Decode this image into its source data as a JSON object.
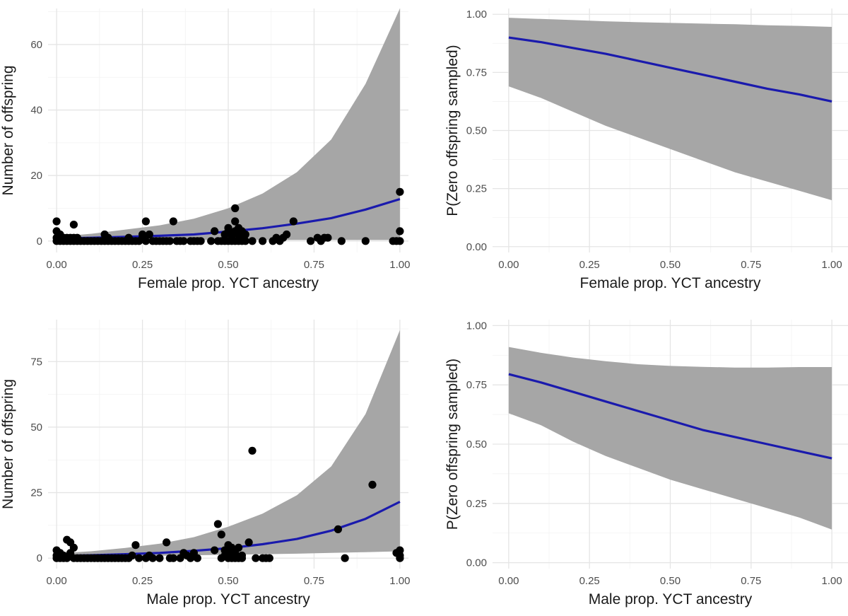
{
  "colors": {
    "line": "#1a1aad",
    "ribbon": "#a6a6a6",
    "points": "#000000"
  },
  "chart_data": [
    {
      "id": "female-offspring",
      "type": "scatter",
      "xlabel": "Female prop. YCT ancestry",
      "ylabel": "Number of offspring",
      "xlim": [
        -0.025,
        1.025
      ],
      "ylim": [
        -3.5,
        71
      ],
      "xticks": [
        0,
        0.25,
        0.5,
        0.75,
        1
      ],
      "xtick_labels": [
        "0.00",
        "0.25",
        "0.50",
        "0.75",
        "1.00"
      ],
      "yticks": [
        0,
        20,
        40,
        60
      ],
      "ytick_labels": [
        "0",
        "20",
        "40",
        "60"
      ],
      "fit_line": {
        "x": [
          0,
          0.1,
          0.2,
          0.3,
          0.4,
          0.5,
          0.6,
          0.7,
          0.8,
          0.9,
          1.0
        ],
        "y": [
          0.8,
          1.0,
          1.3,
          1.6,
          2.0,
          2.9,
          3.9,
          5.3,
          7.0,
          9.6,
          12.8
        ]
      },
      "ribbon": {
        "x": [
          0,
          0.1,
          0.2,
          0.3,
          0.4,
          0.5,
          0.6,
          0.7,
          0.8,
          0.9,
          1.0
        ],
        "lower": [
          0.3,
          0.3,
          0.3,
          0.3,
          0.3,
          0.3,
          0.3,
          0.3,
          0.3,
          0.3,
          0.3
        ],
        "upper": [
          1.3,
          2.2,
          3.5,
          4.8,
          6.8,
          10.0,
          14.5,
          21.0,
          31.0,
          48.0,
          71.0
        ]
      },
      "points": [
        [
          0.0,
          6
        ],
        [
          0.0,
          3
        ],
        [
          0.0,
          1
        ],
        [
          0.0,
          0
        ],
        [
          0.01,
          0
        ],
        [
          0.01,
          1
        ],
        [
          0.01,
          2
        ],
        [
          0.02,
          0
        ],
        [
          0.02,
          1
        ],
        [
          0.03,
          0
        ],
        [
          0.03,
          1
        ],
        [
          0.04,
          0
        ],
        [
          0.04,
          1
        ],
        [
          0.05,
          5
        ],
        [
          0.05,
          0
        ],
        [
          0.05,
          1
        ],
        [
          0.06,
          0
        ],
        [
          0.06,
          1
        ],
        [
          0.07,
          0
        ],
        [
          0.08,
          0
        ],
        [
          0.09,
          0
        ],
        [
          0.1,
          0
        ],
        [
          0.11,
          0
        ],
        [
          0.12,
          0
        ],
        [
          0.13,
          0
        ],
        [
          0.14,
          0
        ],
        [
          0.14,
          2
        ],
        [
          0.15,
          0
        ],
        [
          0.15,
          1
        ],
        [
          0.16,
          0
        ],
        [
          0.17,
          0
        ],
        [
          0.18,
          0
        ],
        [
          0.19,
          0
        ],
        [
          0.2,
          0
        ],
        [
          0.21,
          0
        ],
        [
          0.21,
          1
        ],
        [
          0.22,
          0
        ],
        [
          0.23,
          0
        ],
        [
          0.24,
          0
        ],
        [
          0.25,
          1
        ],
        [
          0.25,
          2
        ],
        [
          0.26,
          0
        ],
        [
          0.26,
          6
        ],
        [
          0.27,
          2
        ],
        [
          0.28,
          0
        ],
        [
          0.29,
          0
        ],
        [
          0.3,
          0
        ],
        [
          0.31,
          0
        ],
        [
          0.32,
          0
        ],
        [
          0.33,
          0
        ],
        [
          0.34,
          6
        ],
        [
          0.35,
          0
        ],
        [
          0.36,
          0
        ],
        [
          0.37,
          0
        ],
        [
          0.39,
          0
        ],
        [
          0.4,
          0
        ],
        [
          0.41,
          0
        ],
        [
          0.42,
          0
        ],
        [
          0.45,
          0
        ],
        [
          0.46,
          3
        ],
        [
          0.47,
          0
        ],
        [
          0.48,
          0
        ],
        [
          0.49,
          0
        ],
        [
          0.49,
          2
        ],
        [
          0.5,
          0
        ],
        [
          0.5,
          3
        ],
        [
          0.5,
          4
        ],
        [
          0.51,
          0
        ],
        [
          0.51,
          1
        ],
        [
          0.51,
          2
        ],
        [
          0.52,
          0
        ],
        [
          0.52,
          10
        ],
        [
          0.52,
          6
        ],
        [
          0.52,
          3
        ],
        [
          0.53,
          0
        ],
        [
          0.53,
          4
        ],
        [
          0.53,
          2
        ],
        [
          0.54,
          0
        ],
        [
          0.54,
          1
        ],
        [
          0.54,
          3
        ],
        [
          0.55,
          0
        ],
        [
          0.55,
          2
        ],
        [
          0.57,
          0
        ],
        [
          0.6,
          0
        ],
        [
          0.63,
          0
        ],
        [
          0.64,
          1
        ],
        [
          0.65,
          0
        ],
        [
          0.66,
          1
        ],
        [
          0.67,
          2
        ],
        [
          0.69,
          6
        ],
        [
          0.74,
          0
        ],
        [
          0.76,
          1
        ],
        [
          0.77,
          0
        ],
        [
          0.78,
          1
        ],
        [
          0.79,
          1
        ],
        [
          0.83,
          0
        ],
        [
          0.9,
          0
        ],
        [
          0.98,
          0
        ],
        [
          0.99,
          0
        ],
        [
          1.0,
          15
        ],
        [
          1.0,
          3
        ],
        [
          1.0,
          0
        ]
      ]
    },
    {
      "id": "female-zero",
      "type": "line",
      "xlabel": "Female prop. YCT ancestry",
      "ylabel": "P(Zero offspring sampled)",
      "xlim": [
        -0.05,
        1.05
      ],
      "ylim": [
        -0.025,
        1.025
      ],
      "xticks": [
        0,
        0.25,
        0.5,
        0.75,
        1
      ],
      "xtick_labels": [
        "0.00",
        "0.25",
        "0.50",
        "0.75",
        "1.00"
      ],
      "yticks": [
        0,
        0.25,
        0.5,
        0.75,
        1
      ],
      "ytick_labels": [
        "0.00",
        "0.25",
        "0.50",
        "0.75",
        "1.00"
      ],
      "fit_line": {
        "x": [
          0,
          0.1,
          0.2,
          0.3,
          0.4,
          0.5,
          0.6,
          0.7,
          0.8,
          0.9,
          1.0
        ],
        "y": [
          0.9,
          0.88,
          0.855,
          0.83,
          0.8,
          0.77,
          0.74,
          0.71,
          0.68,
          0.655,
          0.625
        ]
      },
      "ribbon": {
        "x": [
          0,
          0.1,
          0.2,
          0.3,
          0.4,
          0.5,
          0.6,
          0.7,
          0.8,
          0.9,
          1.0
        ],
        "lower": [
          0.69,
          0.64,
          0.58,
          0.52,
          0.47,
          0.42,
          0.37,
          0.32,
          0.28,
          0.24,
          0.2
        ],
        "upper": [
          0.985,
          0.98,
          0.975,
          0.97,
          0.966,
          0.963,
          0.96,
          0.957,
          0.953,
          0.95,
          0.946
        ]
      }
    },
    {
      "id": "male-offspring",
      "type": "scatter",
      "xlabel": "Male prop. YCT ancestry",
      "ylabel": "Number of offspring",
      "xlim": [
        -0.025,
        1.025
      ],
      "ylim": [
        -4,
        91
      ],
      "xticks": [
        0,
        0.25,
        0.5,
        0.75,
        1
      ],
      "xtick_labels": [
        "0.00",
        "0.25",
        "0.50",
        "0.75",
        "1.00"
      ],
      "yticks": [
        0,
        25,
        50,
        75
      ],
      "ytick_labels": [
        "0",
        "25",
        "50",
        "75"
      ],
      "fit_line": {
        "x": [
          0,
          0.1,
          0.2,
          0.3,
          0.4,
          0.5,
          0.6,
          0.7,
          0.8,
          0.9,
          1.0
        ],
        "y": [
          0.8,
          1.1,
          1.5,
          2.0,
          2.8,
          3.8,
          5.3,
          7.3,
          10.5,
          15.0,
          21.5
        ]
      },
      "ribbon": {
        "x": [
          0,
          0.1,
          0.2,
          0.3,
          0.4,
          0.5,
          0.6,
          0.7,
          0.8,
          0.9,
          1.0
        ],
        "lower": [
          0.3,
          0.5,
          0.7,
          0.9,
          1.1,
          1.3,
          1.5,
          1.7,
          2.0,
          2.3,
          2.6
        ],
        "upper": [
          1.8,
          2.6,
          3.9,
          5.5,
          8.0,
          12.0,
          17.0,
          24.0,
          35.0,
          55.0,
          87.0
        ]
      },
      "points": [
        [
          0.0,
          3
        ],
        [
          0.0,
          1
        ],
        [
          0.0,
          0
        ],
        [
          0.01,
          0
        ],
        [
          0.01,
          2
        ],
        [
          0.02,
          1
        ],
        [
          0.02,
          0
        ],
        [
          0.03,
          7
        ],
        [
          0.03,
          0
        ],
        [
          0.04,
          6
        ],
        [
          0.04,
          2
        ],
        [
          0.05,
          0
        ],
        [
          0.05,
          4
        ],
        [
          0.06,
          0
        ],
        [
          0.07,
          0
        ],
        [
          0.08,
          0
        ],
        [
          0.09,
          0
        ],
        [
          0.1,
          0
        ],
        [
          0.11,
          0
        ],
        [
          0.12,
          0
        ],
        [
          0.13,
          0
        ],
        [
          0.14,
          0
        ],
        [
          0.15,
          0
        ],
        [
          0.16,
          0
        ],
        [
          0.17,
          0
        ],
        [
          0.18,
          0
        ],
        [
          0.19,
          0
        ],
        [
          0.2,
          0
        ],
        [
          0.21,
          0
        ],
        [
          0.22,
          1
        ],
        [
          0.23,
          5
        ],
        [
          0.24,
          0
        ],
        [
          0.26,
          0
        ],
        [
          0.27,
          1
        ],
        [
          0.28,
          0
        ],
        [
          0.3,
          0
        ],
        [
          0.32,
          6
        ],
        [
          0.33,
          0
        ],
        [
          0.34,
          0
        ],
        [
          0.36,
          0
        ],
        [
          0.37,
          2
        ],
        [
          0.38,
          1
        ],
        [
          0.39,
          0
        ],
        [
          0.4,
          2
        ],
        [
          0.41,
          0
        ],
        [
          0.46,
          3
        ],
        [
          0.47,
          13
        ],
        [
          0.48,
          9
        ],
        [
          0.48,
          0
        ],
        [
          0.49,
          1
        ],
        [
          0.49,
          3
        ],
        [
          0.5,
          0
        ],
        [
          0.5,
          5
        ],
        [
          0.5,
          2
        ],
        [
          0.51,
          4
        ],
        [
          0.51,
          0
        ],
        [
          0.52,
          2
        ],
        [
          0.52,
          0
        ],
        [
          0.53,
          4
        ],
        [
          0.53,
          0
        ],
        [
          0.54,
          1
        ],
        [
          0.54,
          0
        ],
        [
          0.56,
          6
        ],
        [
          0.57,
          41
        ],
        [
          0.58,
          0
        ],
        [
          0.6,
          0
        ],
        [
          0.61,
          0
        ],
        [
          0.62,
          0
        ],
        [
          0.82,
          11
        ],
        [
          0.84,
          0
        ],
        [
          0.92,
          28
        ],
        [
          0.99,
          2
        ],
        [
          1.0,
          3
        ],
        [
          1.0,
          1
        ],
        [
          1.0,
          0
        ]
      ]
    },
    {
      "id": "male-zero",
      "type": "line",
      "xlabel": "Male prop. YCT ancestry",
      "ylabel": "P(Zero offspring sampled)",
      "xlim": [
        -0.05,
        1.05
      ],
      "ylim": [
        -0.025,
        1.025
      ],
      "xticks": [
        0,
        0.25,
        0.5,
        0.75,
        1
      ],
      "xtick_labels": [
        "0.00",
        "0.25",
        "0.50",
        "0.75",
        "1.00"
      ],
      "yticks": [
        0,
        0.25,
        0.5,
        0.75,
        1
      ],
      "ytick_labels": [
        "0.00",
        "0.25",
        "0.50",
        "0.75",
        "1.00"
      ],
      "fit_line": {
        "x": [
          0,
          0.1,
          0.2,
          0.3,
          0.4,
          0.5,
          0.6,
          0.7,
          0.8,
          0.9,
          1.0
        ],
        "y": [
          0.795,
          0.76,
          0.72,
          0.68,
          0.64,
          0.6,
          0.56,
          0.53,
          0.5,
          0.47,
          0.44
        ]
      },
      "ribbon": {
        "x": [
          0,
          0.1,
          0.2,
          0.3,
          0.4,
          0.5,
          0.6,
          0.7,
          0.8,
          0.9,
          1.0
        ],
        "lower": [
          0.63,
          0.58,
          0.51,
          0.45,
          0.4,
          0.35,
          0.31,
          0.27,
          0.23,
          0.19,
          0.14
        ],
        "upper": [
          0.91,
          0.885,
          0.865,
          0.85,
          0.837,
          0.83,
          0.826,
          0.823,
          0.823,
          0.825,
          0.825
        ]
      }
    }
  ]
}
